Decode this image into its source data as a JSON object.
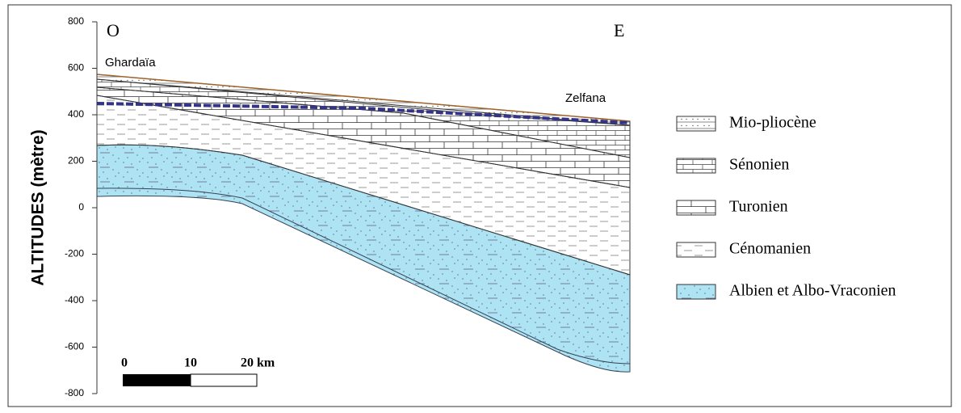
{
  "axis": {
    "label": "ALTITUDES (mètre)",
    "ylim": [
      -800,
      800
    ],
    "ticks": [
      800,
      600,
      400,
      200,
      0,
      -200,
      -400,
      -600,
      -800
    ]
  },
  "orientation": {
    "west": "O",
    "east": "E"
  },
  "places": {
    "west": "Ghardaïa",
    "east": "Zelfana"
  },
  "scale_bar": {
    "labels": [
      "0",
      "10",
      "20 km"
    ]
  },
  "legend": [
    "Mio-pliocène",
    "Sénonien",
    "Turonien",
    "Cénomanien",
    "Albien et Albo-Vraconien"
  ]
}
